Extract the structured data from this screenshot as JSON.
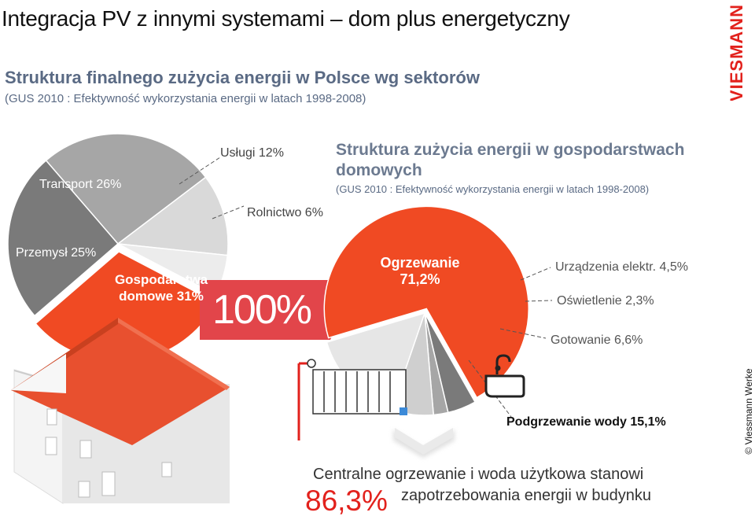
{
  "slide": {
    "title": "Integracja PV z innymi systemami – dom plus energetyczny",
    "brand": "VIESMANN",
    "copyright": "© Viessmann Werke"
  },
  "sector_section": {
    "title": "Struktura finalnego zużycia energii w Polsce wg sektorów",
    "source": "(GUS 2010 : Efektywność wykorzystania energii w latach 1998-2008)"
  },
  "household_section": {
    "title": "Struktura zużycia energii w gospodarstwach domowych",
    "source": "(GUS 2010 : Efektywność wykorzystania energii w latach 1998-2008)"
  },
  "badge": {
    "text": "100%"
  },
  "summary": {
    "line1": "Centralne ogrzewanie i woda użytkowa stanowi",
    "line2": "zapotrzebowania energii w budynku",
    "percent": "86,3%"
  },
  "colors": {
    "accent_red": "#e2211c",
    "pie_red": "#f04a23",
    "dark_gray": "#7a7a7a",
    "mid_gray": "#a6a6a6",
    "light_gray": "#d9d9d9",
    "lighter_gray": "#ececec",
    "house_roof": "#e8502f",
    "house_wall": "#eeeeee"
  },
  "icons": [
    "radiator-icon",
    "sink-icon",
    "house-illustration",
    "chevron-down-icon"
  ],
  "chart_data": [
    {
      "type": "pie",
      "title": "Struktura finalnego zużycia energii w Polsce wg sektorów",
      "slices": [
        {
          "name": "Transport",
          "value": 26,
          "label": "Transport 26%",
          "color": "#a6a6a6"
        },
        {
          "name": "Usługi",
          "value": 12,
          "label": "Usługi 12%",
          "color": "#d9d9d9"
        },
        {
          "name": "Rolnictwo",
          "value": 6,
          "label": "Rolnictwo 6%",
          "color": "#ececec"
        },
        {
          "name": "Gospodarstwa domowe",
          "value": 31,
          "label": "Gospodarstwa domowe 31%",
          "color": "#f04a23"
        },
        {
          "name": "Przemysł",
          "value": 25,
          "label": "Przemysł 25%",
          "color": "#7a7a7a"
        }
      ]
    },
    {
      "type": "pie",
      "title": "Struktura zużycia energii w gospodarstwach domowych",
      "slices": [
        {
          "name": "Ogrzewanie",
          "value": 71.2,
          "label": "Ogrzewanie 71,2%",
          "color": "#f04a23"
        },
        {
          "name": "Urządzenia elektr.",
          "value": 4.5,
          "label": "Urządzenia elektr. 4,5%",
          "color": "#7a7a7a"
        },
        {
          "name": "Oświetlenie",
          "value": 2.3,
          "label": "Oświetlenie 2,3%",
          "color": "#a6a6a6"
        },
        {
          "name": "Gotowanie",
          "value": 6.6,
          "label": "Gotowanie 6,6%",
          "color": "#cfcfcf"
        },
        {
          "name": "Podgrzewanie wody",
          "value": 15.1,
          "label": "Podgrzewanie wody 15,1%",
          "color": "#e6e6e6"
        }
      ]
    }
  ]
}
